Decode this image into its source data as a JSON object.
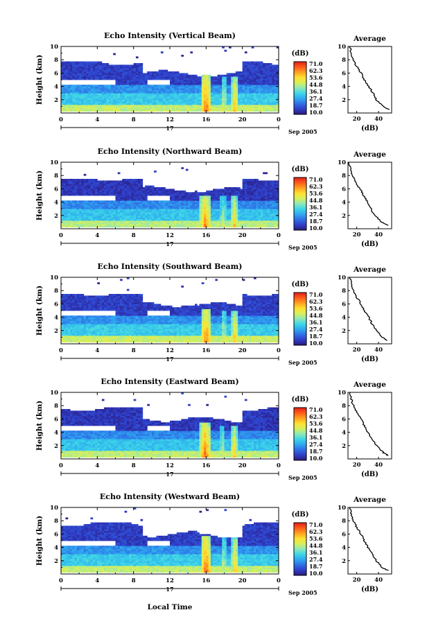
{
  "figure": {
    "x_axis_title": "Local Time",
    "date_label": "17",
    "date_suffix": "Sep 2005",
    "colorbar_unit": "(dB)",
    "colorbar_ticks": [
      "71.0",
      "62.3",
      "53.6",
      "44.8",
      "36.1",
      "27.4",
      "18.7",
      "10.0"
    ],
    "colormap": [
      "#2b1a7a",
      "#2f3ec8",
      "#2f6ee6",
      "#2fa8f0",
      "#3cd6e8",
      "#8ee8b8",
      "#d6f05a",
      "#ffe030",
      "#ffa020",
      "#ff5a1a",
      "#e0201a"
    ],
    "time_ticks": [
      "0",
      "4",
      "8",
      "12",
      "16",
      "20",
      "0"
    ],
    "height_ticks": [
      "2",
      "4",
      "6",
      "8",
      "10"
    ],
    "avg_title": "Average",
    "avg_xlabel": "(dB)"
  },
  "chart_data": [
    {
      "type": "heatmap",
      "title": "Echo Intensity (Vertical Beam)",
      "ylabel": "Height (km)",
      "xlim": [
        0,
        24
      ],
      "ylim": [
        0,
        10
      ],
      "colorbar": {
        "label": "(dB)",
        "range": [
          10.0,
          71.0
        ]
      },
      "bands": [
        {
          "x": [
            0,
            24
          ],
          "y": [
            0.2,
            1.2
          ],
          "dB": 45
        },
        {
          "x": [
            0,
            24
          ],
          "y": [
            1.2,
            3.0
          ],
          "dB": 33
        },
        {
          "x": [
            0,
            24
          ],
          "y": [
            3.0,
            4.2
          ],
          "dB": 26
        },
        {
          "x": [
            0,
            24
          ],
          "y": [
            4.2,
            7.8
          ],
          "dB": 16
        }
      ],
      "convective_cores": [
        {
          "x": [
            15.4,
            16.6
          ],
          "ytop": 5.8,
          "dB": 66
        },
        {
          "x": [
            17.7,
            18.2
          ],
          "ytop": 5.6,
          "dB": 52
        },
        {
          "x": [
            18.8,
            19.6
          ],
          "ytop": 5.6,
          "dB": 60
        }
      ],
      "average": {
        "x_ticks": [
          "20",
          "40"
        ],
        "xlim": [
          12,
          52
        ],
        "ylim": [
          0,
          10
        ],
        "y": [
          0.5,
          1,
          2,
          3,
          4,
          5,
          6,
          7,
          8,
          9,
          10
        ],
        "dB": [
          50,
          44,
          38,
          35,
          31,
          27,
          24,
          20,
          17,
          15,
          14
        ]
      }
    },
    {
      "type": "heatmap",
      "title": "Echo Intensity (Northward Beam)",
      "ylabel": "Height (km)",
      "xlim": [
        0,
        24
      ],
      "ylim": [
        0,
        10
      ],
      "colorbar": {
        "label": "(dB)",
        "range": [
          10.0,
          71.0
        ]
      },
      "bands": [
        {
          "x": [
            0,
            24
          ],
          "y": [
            0.2,
            1.2
          ],
          "dB": 44
        },
        {
          "x": [
            0,
            24
          ],
          "y": [
            1.2,
            3.0
          ],
          "dB": 32
        },
        {
          "x": [
            0,
            24
          ],
          "y": [
            3.0,
            4.2
          ],
          "dB": 25
        },
        {
          "x": [
            0,
            24
          ],
          "y": [
            4.2,
            7.5
          ],
          "dB": 15
        }
      ],
      "convective_cores": [
        {
          "x": [
            15.3,
            16.5
          ],
          "ytop": 5.0,
          "dB": 64
        },
        {
          "x": [
            17.6,
            18.2
          ],
          "ytop": 5.0,
          "dB": 50
        },
        {
          "x": [
            18.7,
            19.5
          ],
          "ytop": 5.0,
          "dB": 58
        }
      ],
      "average": {
        "x_ticks": [
          "20",
          "40"
        ],
        "xlim": [
          12,
          52
        ],
        "ylim": [
          0,
          10
        ],
        "y": [
          0.5,
          1,
          2,
          3,
          4,
          5,
          6,
          7,
          8,
          9,
          10
        ],
        "dB": [
          49,
          43,
          37,
          33,
          30,
          26,
          23,
          19,
          16,
          14,
          13
        ]
      }
    },
    {
      "type": "heatmap",
      "title": "Echo Intensity (Southward Beam)",
      "ylabel": "Height (km)",
      "xlim": [
        0,
        24
      ],
      "ylim": [
        0,
        10
      ],
      "colorbar": {
        "label": "(dB)",
        "range": [
          10.0,
          71.0
        ]
      },
      "bands": [
        {
          "x": [
            0,
            24
          ],
          "y": [
            0.2,
            1.2
          ],
          "dB": 46
        },
        {
          "x": [
            0,
            24
          ],
          "y": [
            1.2,
            3.0
          ],
          "dB": 33
        },
        {
          "x": [
            0,
            24
          ],
          "y": [
            3.0,
            4.2
          ],
          "dB": 26
        },
        {
          "x": [
            0,
            24
          ],
          "y": [
            4.2,
            7.5
          ],
          "dB": 16
        }
      ],
      "convective_cores": [
        {
          "x": [
            15.4,
            16.6
          ],
          "ytop": 5.2,
          "dB": 65
        },
        {
          "x": [
            17.7,
            18.2
          ],
          "ytop": 5.0,
          "dB": 51
        },
        {
          "x": [
            18.8,
            19.6
          ],
          "ytop": 5.0,
          "dB": 59
        }
      ],
      "average": {
        "x_ticks": [
          "20",
          "40"
        ],
        "xlim": [
          12,
          52
        ],
        "ylim": [
          0,
          10
        ],
        "y": [
          0.5,
          1,
          2,
          3,
          4,
          5,
          6,
          7,
          8,
          9,
          10
        ],
        "dB": [
          48,
          43,
          38,
          34,
          31,
          27,
          24,
          20,
          17,
          15,
          14
        ]
      }
    },
    {
      "type": "heatmap",
      "title": "Echo Intensity (Eastward Beam)",
      "ylabel": "Height (km)",
      "xlim": [
        0,
        24
      ],
      "ylim": [
        0,
        10
      ],
      "colorbar": {
        "label": "(dB)",
        "range": [
          10.0,
          71.0
        ]
      },
      "bands": [
        {
          "x": [
            0,
            24
          ],
          "y": [
            0.2,
            1.2
          ],
          "dB": 45
        },
        {
          "x": [
            0,
            24
          ],
          "y": [
            1.2,
            3.0
          ],
          "dB": 32
        },
        {
          "x": [
            0,
            24
          ],
          "y": [
            3.0,
            4.2
          ],
          "dB": 25
        },
        {
          "x": [
            0,
            24
          ],
          "y": [
            4.2,
            7.8
          ],
          "dB": 15
        }
      ],
      "convective_cores": [
        {
          "x": [
            15.3,
            16.5
          ],
          "ytop": 5.5,
          "dB": 66
        },
        {
          "x": [
            17.6,
            18.1
          ],
          "ytop": 5.0,
          "dB": 50
        },
        {
          "x": [
            18.7,
            19.5
          ],
          "ytop": 5.0,
          "dB": 58
        }
      ],
      "average": {
        "x_ticks": [
          "20",
          "40"
        ],
        "xlim": [
          12,
          52
        ],
        "ylim": [
          0,
          10
        ],
        "y": [
          0.5,
          1,
          2,
          3,
          4,
          5,
          6,
          7,
          8,
          9,
          10
        ],
        "dB": [
          49,
          44,
          38,
          34,
          30,
          27,
          24,
          20,
          17,
          15,
          14
        ]
      }
    },
    {
      "type": "heatmap",
      "title": "Echo Intensity (Westward Beam)",
      "ylabel": "Height (km)",
      "xlim": [
        0,
        24
      ],
      "ylim": [
        0,
        10
      ],
      "colorbar": {
        "label": "(dB)",
        "range": [
          10.0,
          71.0
        ]
      },
      "bands": [
        {
          "x": [
            0,
            24
          ],
          "y": [
            0.2,
            1.2
          ],
          "dB": 45
        },
        {
          "x": [
            0,
            24
          ],
          "y": [
            1.2,
            3.0
          ],
          "dB": 33
        },
        {
          "x": [
            0,
            24
          ],
          "y": [
            3.0,
            4.2
          ],
          "dB": 26
        },
        {
          "x": [
            0,
            24
          ],
          "y": [
            4.2,
            7.8
          ],
          "dB": 16
        }
      ],
      "convective_cores": [
        {
          "x": [
            15.4,
            16.6
          ],
          "ytop": 5.8,
          "dB": 66
        },
        {
          "x": [
            17.7,
            18.2
          ],
          "ytop": 5.5,
          "dB": 51
        },
        {
          "x": [
            18.8,
            19.6
          ],
          "ytop": 5.5,
          "dB": 59
        }
      ],
      "average": {
        "x_ticks": [
          "20",
          "40"
        ],
        "xlim": [
          12,
          52
        ],
        "ylim": [
          0,
          10
        ],
        "y": [
          0.5,
          1,
          2,
          3,
          4,
          5,
          6,
          7,
          8,
          9,
          10
        ],
        "dB": [
          49,
          43,
          38,
          34,
          30,
          27,
          24,
          20,
          17,
          15,
          14
        ]
      }
    }
  ]
}
